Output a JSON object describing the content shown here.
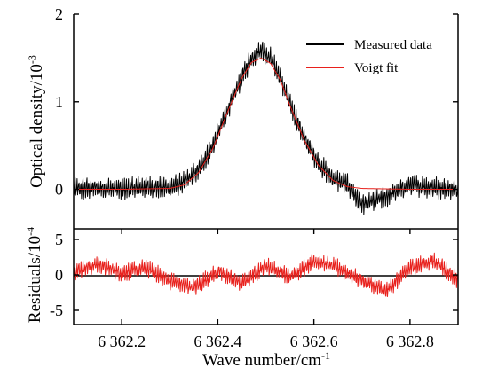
{
  "chart_data": [
    {
      "type": "line",
      "panel": "top",
      "ylabel": "Optical density/10",
      "ylabel_exponent": "-3",
      "ylim": [
        -0.45,
        2.0
      ],
      "xlim": [
        6362.1,
        6362.9
      ],
      "yticks": [
        {
          "value": 0,
          "label": "0"
        },
        {
          "value": 1,
          "label": "1"
        },
        {
          "value": 2,
          "label": "2"
        }
      ],
      "noise_amplitude": 0.13,
      "legend": {
        "placement": "top-right",
        "entries": [
          {
            "label": "Measured data",
            "color": "#000000"
          },
          {
            "label": "Voigt fit",
            "color": "#e8201c"
          }
        ]
      },
      "series": [
        {
          "name": "Measured data",
          "color": "#000000",
          "x": [
            6362.1,
            6362.15,
            6362.2,
            6362.25,
            6362.3,
            6362.33,
            6362.36,
            6362.39,
            6362.42,
            6362.45,
            6362.47,
            6362.49,
            6362.51,
            6362.53,
            6362.55,
            6362.58,
            6362.61,
            6362.64,
            6362.67,
            6362.7,
            6362.75,
            6362.8,
            6362.85,
            6362.9
          ],
          "y": [
            0.0,
            0.02,
            0.0,
            0.03,
            0.02,
            0.08,
            0.22,
            0.5,
            0.9,
            1.28,
            1.5,
            1.6,
            1.5,
            1.27,
            0.97,
            0.58,
            0.3,
            0.12,
            0.05,
            -0.18,
            -0.08,
            0.05,
            0.02,
            0.0
          ]
        },
        {
          "name": "Voigt fit",
          "color": "#e8201c",
          "x": [
            6362.1,
            6362.2,
            6362.3,
            6362.33,
            6362.36,
            6362.39,
            6362.42,
            6362.45,
            6362.47,
            6362.49,
            6362.51,
            6362.53,
            6362.55,
            6362.58,
            6362.61,
            6362.64,
            6362.67,
            6362.7,
            6362.8,
            6362.9
          ],
          "y": [
            0.0,
            0.0,
            0.01,
            0.05,
            0.19,
            0.47,
            0.88,
            1.27,
            1.45,
            1.5,
            1.44,
            1.25,
            0.96,
            0.56,
            0.27,
            0.1,
            0.03,
            0.01,
            0.0,
            0.0
          ]
        }
      ]
    },
    {
      "type": "line",
      "panel": "bottom",
      "ylabel": "Residuals/10",
      "ylabel_exponent": "-4",
      "xlabel": "Wave number/cm",
      "xlabel_exponent": "-1",
      "ylim": [
        -7.0,
        6.5
      ],
      "xlim": [
        6362.1,
        6362.9
      ],
      "yticks": [
        {
          "value": -5,
          "label": "-5"
        },
        {
          "value": 0,
          "label": "0"
        },
        {
          "value": 5,
          "label": "5"
        }
      ],
      "xticks": [
        {
          "value": 6362.2,
          "label": "6 362.2"
        },
        {
          "value": 6362.4,
          "label": "6 362.4"
        },
        {
          "value": 6362.6,
          "label": "6 362.6"
        },
        {
          "value": 6362.8,
          "label": "6 362.8"
        }
      ],
      "zero_line": true,
      "noise_amplitude": 1.3,
      "series": [
        {
          "color": "#e8201c",
          "x": [
            6362.1,
            6362.15,
            6362.2,
            6362.25,
            6362.3,
            6362.35,
            6362.4,
            6362.45,
            6362.5,
            6362.55,
            6362.6,
            6362.65,
            6362.7,
            6362.75,
            6362.8,
            6362.85,
            6362.9
          ],
          "y": [
            0.5,
            1.5,
            0.3,
            1.0,
            -0.8,
            -1.8,
            0.5,
            -1.2,
            1.3,
            -0.3,
            2.0,
            1.0,
            -0.8,
            -2.3,
            1.0,
            2.0,
            -0.7
          ]
        }
      ]
    }
  ]
}
